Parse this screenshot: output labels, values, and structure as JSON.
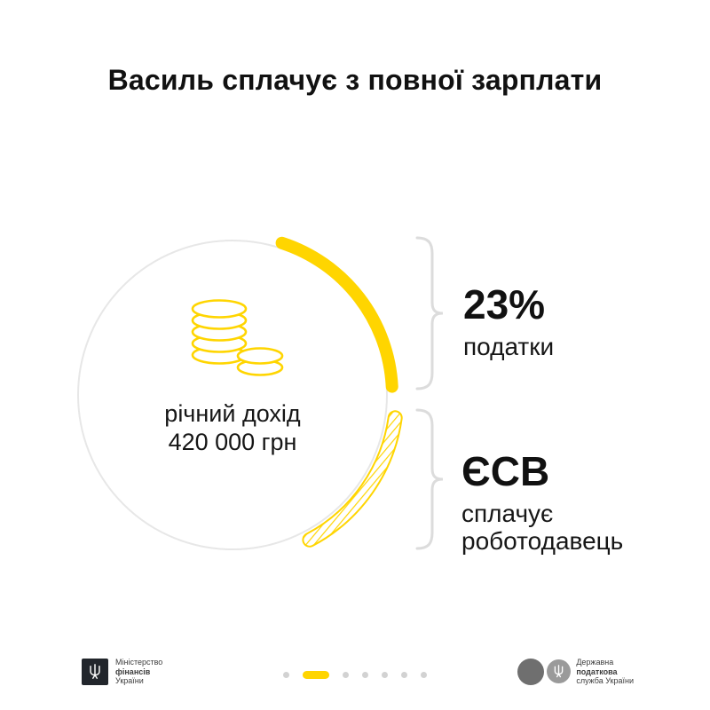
{
  "colors": {
    "accent": "#ffd500",
    "brace_gray": "#dcdcdc",
    "circle_gray": "#e7e7e7",
    "dot_gray": "#d2d2d2"
  },
  "title": "Василь сплачує з повної зарплати",
  "donut": {
    "center_line1": "річний дохід",
    "center_line2": "420 000 грн"
  },
  "callout_taxes": {
    "segment_style": "solid",
    "value": "23%",
    "label": "податки"
  },
  "callout_employer": {
    "segment_style": "hatched",
    "value": "ЄСВ",
    "label_line1": "сплачує",
    "label_line2": "роботодавець"
  },
  "footer": {
    "ministry": {
      "line1": "Міністерство",
      "line2": "фінансів",
      "line3": "України"
    },
    "tax_service": {
      "line1": "Державна",
      "line2": "податкова",
      "line3": "служба України"
    },
    "pagination": {
      "total": 7,
      "active": 1
    }
  }
}
